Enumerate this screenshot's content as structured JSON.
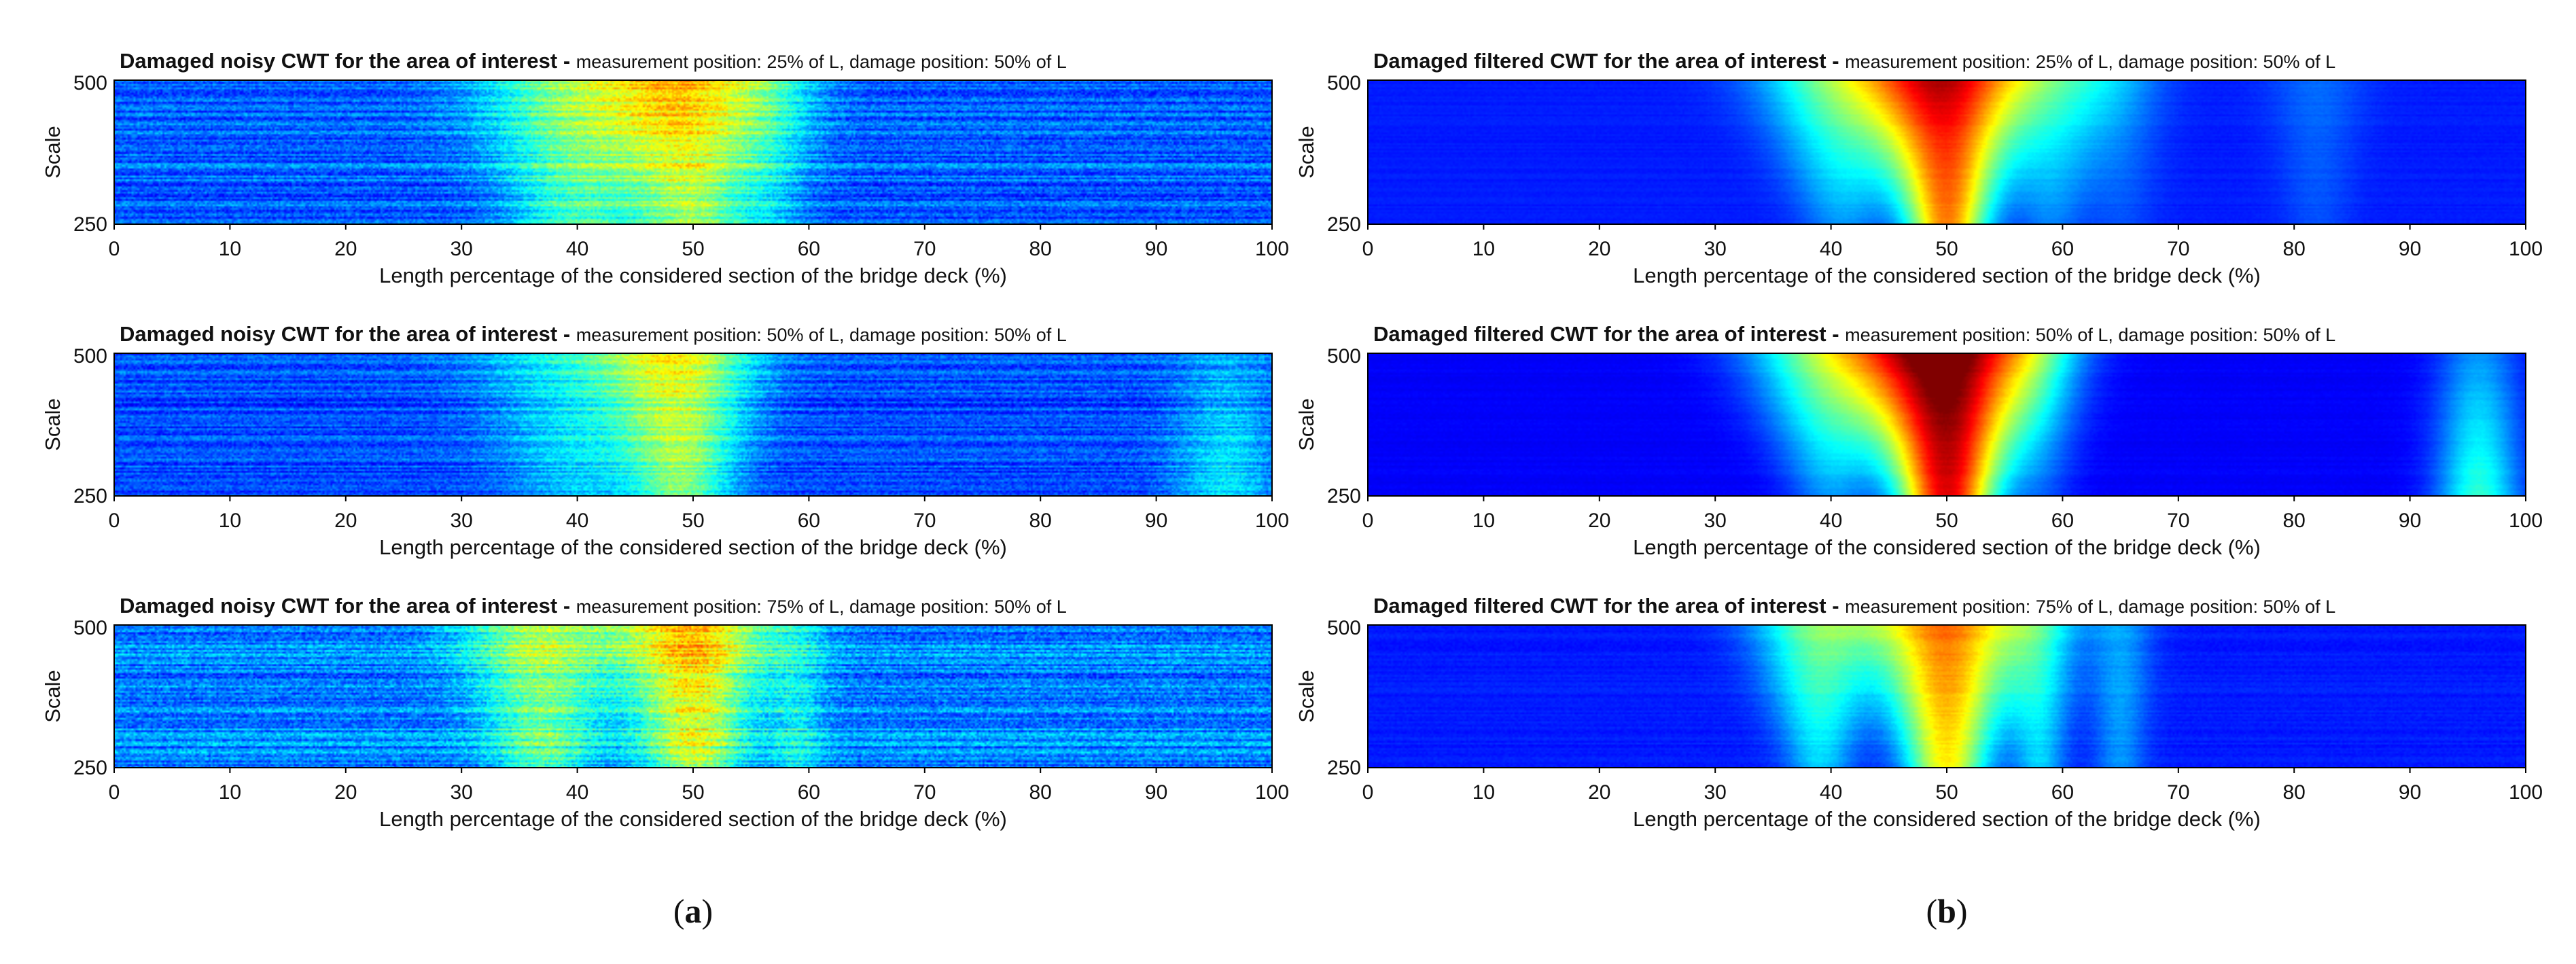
{
  "panel_labels": {
    "a": {
      "open": "(",
      "letter": "a",
      "close": ")"
    },
    "b": {
      "open": "(",
      "letter": "b",
      "close": ")"
    }
  },
  "chart_data": [
    {
      "type": "heatmap",
      "title_bold": "Damaged noisy CWT for the area of interest - ",
      "title_rest": "measurement position: 25% of L, damage position: 50% of L",
      "xlabel": "Length percentage of the considered section of the bridge deck (%)",
      "ylabel": "Scale",
      "xlim": [
        0,
        100
      ],
      "ylim": [
        250,
        500
      ],
      "x_ticks": [
        "0",
        "10",
        "20",
        "30",
        "40",
        "50",
        "60",
        "70",
        "80",
        "90",
        "100"
      ],
      "y_ticks": [
        "500",
        "250"
      ],
      "colormap": "jet",
      "clim": [
        0,
        1
      ],
      "noise": 0.25,
      "background": 0.22,
      "features": [
        {
          "center": 40,
          "width_top": 6,
          "width_bottom": 4,
          "peak_top": 0.3,
          "peak_bottom": 0.22
        },
        {
          "center": 50,
          "width_top": 5,
          "width_bottom": 3.5,
          "peak_top": 0.4,
          "peak_bottom": 0.3
        },
        {
          "center": 57,
          "width_top": 3,
          "width_bottom": 2,
          "peak_top": 0.12,
          "peak_bottom": 0.08
        }
      ]
    },
    {
      "type": "heatmap",
      "title_bold": "Damaged noisy CWT for the area of interest - ",
      "title_rest": "measurement position: 50% of L, damage position: 50% of L",
      "xlabel": "Length percentage of the considered section of the bridge deck (%)",
      "ylabel": "Scale",
      "xlim": [
        0,
        100
      ],
      "ylim": [
        250,
        500
      ],
      "x_ticks": [
        "0",
        "10",
        "20",
        "30",
        "40",
        "50",
        "60",
        "70",
        "80",
        "90",
        "100"
      ],
      "y_ticks": [
        "500",
        "250"
      ],
      "colormap": "jet",
      "clim": [
        0,
        1
      ],
      "noise": 0.22,
      "background": 0.2,
      "features": [
        {
          "center": 40,
          "width_top": 6,
          "width_bottom": 4,
          "peak_top": 0.18,
          "peak_bottom": 0.12
        },
        {
          "center": 49,
          "width_top": 4.5,
          "width_bottom": 3,
          "peak_top": 0.36,
          "peak_bottom": 0.3
        },
        {
          "center": 96,
          "width_top": 3,
          "width_bottom": 3,
          "peak_top": 0.08,
          "peak_bottom": 0.16
        }
      ]
    },
    {
      "type": "heatmap",
      "title_bold": "Damaged noisy CWT for the area of interest - ",
      "title_rest": "measurement position: 75% of L, damage position: 50% of L",
      "xlabel": "Length percentage of the considered section of the bridge deck (%)",
      "ylabel": "Scale",
      "xlim": [
        0,
        100
      ],
      "ylim": [
        250,
        500
      ],
      "x_ticks": [
        "0",
        "10",
        "20",
        "30",
        "40",
        "50",
        "60",
        "70",
        "80",
        "90",
        "100"
      ],
      "y_ticks": [
        "500",
        "250"
      ],
      "colormap": "jet",
      "clim": [
        0,
        1
      ],
      "noise": 0.3,
      "background": 0.25,
      "features": [
        {
          "center": 37,
          "width_top": 5,
          "width_bottom": 3,
          "peak_top": 0.3,
          "peak_bottom": 0.2
        },
        {
          "center": 50,
          "width_top": 4.5,
          "width_bottom": 3,
          "peak_top": 0.45,
          "peak_bottom": 0.3
        },
        {
          "center": 59,
          "width_top": 2,
          "width_bottom": 1.5,
          "peak_top": 0.1,
          "peak_bottom": 0.12
        }
      ]
    },
    {
      "type": "heatmap",
      "title_bold": "Damaged filtered CWT for the area of interest - ",
      "title_rest": "measurement position: 25% of L, damage position: 50% of L",
      "xlabel": "Length percentage of the considered section of the bridge deck (%)",
      "ylabel": "Scale",
      "xlim": [
        0,
        100
      ],
      "ylim": [
        250,
        500
      ],
      "x_ticks": [
        "0",
        "10",
        "20",
        "30",
        "40",
        "50",
        "60",
        "70",
        "80",
        "90",
        "100"
      ],
      "y_ticks": [
        "500",
        "250"
      ],
      "colormap": "jet",
      "clim": [
        0,
        1
      ],
      "noise": 0.03,
      "background": 0.15,
      "features": [
        {
          "center": 41,
          "width_top": 5,
          "width_bottom": 2.5,
          "peak_top": 0.35,
          "peak_bottom": 0.12
        },
        {
          "center": 50,
          "width_top": 4.5,
          "width_bottom": 2.5,
          "peak_top": 0.72,
          "peak_bottom": 0.6
        },
        {
          "center": 59,
          "width_top": 4,
          "width_bottom": 2,
          "peak_top": 0.25,
          "peak_bottom": 0.1
        },
        {
          "center": 65,
          "width_top": 3,
          "width_bottom": 2,
          "peak_top": 0.1,
          "peak_bottom": 0.05
        },
        {
          "center": 82,
          "width_top": 3,
          "width_bottom": 2,
          "peak_top": 0.08,
          "peak_bottom": 0.05
        }
      ]
    },
    {
      "type": "heatmap",
      "title_bold": "Damaged filtered CWT for the area of interest - ",
      "title_rest": "measurement position: 50% of L, damage position: 50% of L",
      "xlabel": "Length percentage of the considered section of the bridge deck (%)",
      "ylabel": "Scale",
      "xlim": [
        0,
        100
      ],
      "ylim": [
        250,
        500
      ],
      "x_ticks": [
        "0",
        "10",
        "20",
        "30",
        "40",
        "50",
        "60",
        "70",
        "80",
        "90",
        "100"
      ],
      "y_ticks": [
        "500",
        "250"
      ],
      "colormap": "jet",
      "clim": [
        0,
        1
      ],
      "noise": 0.03,
      "background": 0.12,
      "features": [
        {
          "center": 40,
          "width_top": 5,
          "width_bottom": 2.5,
          "peak_top": 0.4,
          "peak_bottom": 0.15
        },
        {
          "center": 50,
          "width_top": 5,
          "width_bottom": 3,
          "peak_top": 0.92,
          "peak_bottom": 0.78
        },
        {
          "center": 58,
          "width_top": 3,
          "width_bottom": 2,
          "peak_top": 0.2,
          "peak_bottom": 0.08
        },
        {
          "center": 96,
          "width_top": 2.5,
          "width_bottom": 2.5,
          "peak_top": 0.15,
          "peak_bottom": 0.3
        }
      ]
    },
    {
      "type": "heatmap",
      "title_bold": "Damaged filtered CWT for the area of interest - ",
      "title_rest": "measurement position: 75% of L, damage position: 50% of L",
      "xlabel": "Length percentage of the considered section of the bridge deck (%)",
      "ylabel": "Scale",
      "xlim": [
        0,
        100
      ],
      "ylim": [
        250,
        500
      ],
      "x_ticks": [
        "0",
        "10",
        "20",
        "30",
        "40",
        "50",
        "60",
        "70",
        "80",
        "90",
        "100"
      ],
      "y_ticks": [
        "500",
        "250"
      ],
      "colormap": "jet",
      "clim": [
        0,
        1
      ],
      "noise": 0.05,
      "background": 0.15,
      "features": [
        {
          "center": 39,
          "width_top": 4,
          "width_bottom": 2,
          "peak_top": 0.35,
          "peak_bottom": 0.18
        },
        {
          "center": 50,
          "width_top": 4.5,
          "width_bottom": 2.5,
          "peak_top": 0.62,
          "peak_bottom": 0.48
        },
        {
          "center": 58,
          "width_top": 2.5,
          "width_bottom": 1.5,
          "peak_top": 0.22,
          "peak_bottom": 0.18
        },
        {
          "center": 65,
          "width_top": 2,
          "width_bottom": 1.5,
          "peak_top": 0.14,
          "peak_bottom": 0.12
        }
      ]
    }
  ]
}
